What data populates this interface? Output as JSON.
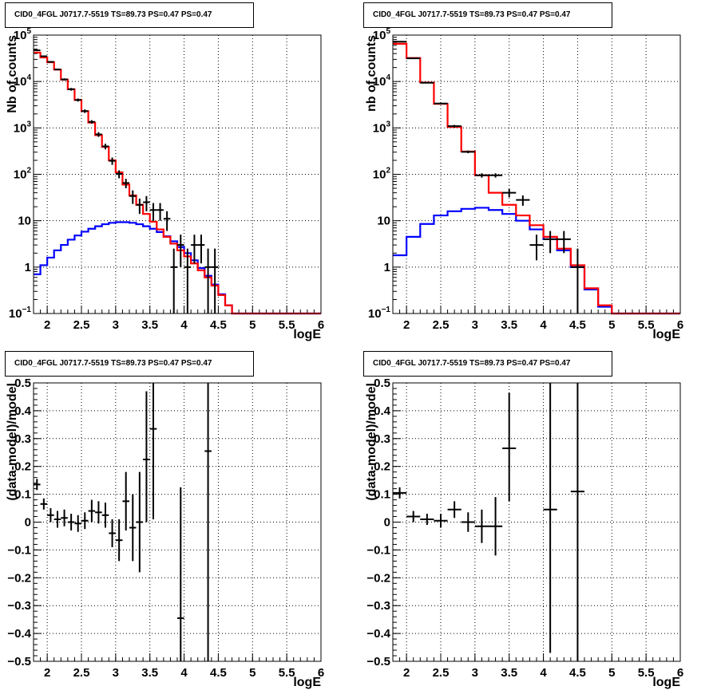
{
  "panel_title": "CID0_4FGL J0717.7-5519 TS=89.73 PS=0.47 PS=0.47",
  "colors": {
    "data": "#000000",
    "total_model": "#ff0000",
    "source_model": "#0000ff",
    "grid": "#000000"
  },
  "chart_data": [
    {
      "type": "line",
      "title": "CID0_4FGL J0717.7-5519 TS=89.73 PS=0.47 PS=0.47",
      "xlabel": "logE",
      "ylabel": "Nb of counts",
      "xlim": [
        1.8,
        6.0
      ],
      "ylim": [
        0.1,
        100000
      ],
      "yscale": "log",
      "grid": true,
      "xticks": [
        "2",
        "2.5",
        "3",
        "3.5",
        "4",
        "4.5",
        "5",
        "5.5",
        "6"
      ],
      "yticks": [
        "10⁻¹",
        "1",
        "10",
        "10²",
        "10³",
        "10⁴",
        "10⁵"
      ],
      "bin_edges": [
        1.8,
        1.9,
        2.0,
        2.1,
        2.2,
        2.3,
        2.4,
        2.5,
        2.6,
        2.7,
        2.8,
        2.9,
        3.0,
        3.1,
        3.2,
        3.3,
        3.4,
        3.5,
        3.6,
        3.7,
        3.8,
        3.9,
        4.0,
        4.1,
        4.2,
        4.3,
        4.4,
        4.5,
        4.6,
        4.7,
        4.8,
        4.9,
        5.0,
        5.1,
        5.2,
        5.3,
        5.4,
        5.5,
        5.6,
        5.7,
        5.8,
        5.9,
        6.0
      ],
      "series": [
        {
          "values": [
            42000,
            33000,
            26000,
            18000,
            11000,
            6800,
            4000,
            2300,
            1300,
            700,
            390,
            200,
            110,
            60,
            35,
            22,
            14,
            9.5,
            6.5,
            4.5,
            3.2,
            2.3,
            1.7,
            1.2,
            0.85,
            0.6,
            0.4,
            0.25,
            0.15,
            0.1,
            0.1,
            0.1,
            0.1,
            0.1,
            0.1,
            0.1,
            0.1,
            0.1,
            0.1,
            0.1,
            0.1,
            0.1
          ]
        },
        {
          "values": [
            0.7,
            1.1,
            1.6,
            2.3,
            3.0,
            3.9,
            4.8,
            5.8,
            6.7,
            7.6,
            8.4,
            9.0,
            9.3,
            9.3,
            9.0,
            8.4,
            7.6,
            6.7,
            5.7,
            4.6,
            3.6,
            2.7,
            2.0,
            1.4,
            0.95,
            0.65,
            0.42,
            0.26,
            0.15,
            0.1,
            0.1,
            0.1,
            0.1,
            0.1,
            0.1,
            0.1,
            0.1,
            0.1,
            0.1,
            0.1,
            0.1,
            0.1
          ]
        },
        {
          "points": [
            {
              "x": 1.85,
              "y": 47000,
              "lo": 45000,
              "hi": 49000
            },
            {
              "x": 1.95,
              "y": 35000,
              "lo": 34000,
              "hi": 36200
            },
            {
              "x": 2.05,
              "y": 26500,
              "lo": 25500,
              "hi": 27500
            },
            {
              "x": 2.15,
              "y": 18200,
              "lo": 17400,
              "hi": 19000
            },
            {
              "x": 2.25,
              "y": 11100,
              "lo": 10500,
              "hi": 11700
            },
            {
              "x": 2.35,
              "y": 6800,
              "lo": 6350,
              "hi": 7250
            },
            {
              "x": 2.45,
              "y": 4000,
              "lo": 3700,
              "hi": 4300
            },
            {
              "x": 2.55,
              "y": 2300,
              "lo": 2100,
              "hi": 2500
            },
            {
              "x": 2.65,
              "y": 1350,
              "lo": 1230,
              "hi": 1470
            },
            {
              "x": 2.75,
              "y": 725,
              "lo": 640,
              "hi": 810
            },
            {
              "x": 2.85,
              "y": 400,
              "lo": 345,
              "hi": 455
            },
            {
              "x": 2.95,
              "y": 195,
              "lo": 160,
              "hi": 230
            },
            {
              "x": 3.05,
              "y": 102,
              "lo": 82,
              "hi": 122
            },
            {
              "x": 3.15,
              "y": 65,
              "lo": 50,
              "hi": 80
            },
            {
              "x": 3.25,
              "y": 34,
              "lo": 23,
              "hi": 45
            },
            {
              "x": 3.35,
              "y": 22,
              "lo": 14,
              "hi": 30
            },
            {
              "x": 3.45,
              "y": 25,
              "lo": 16,
              "hi": 34
            },
            {
              "x": 3.55,
              "y": 17,
              "lo": 10,
              "hi": 24
            },
            {
              "x": 3.65,
              "y": 17,
              "lo": 10,
              "hi": 24
            },
            {
              "x": 3.75,
              "y": 11,
              "lo": 6,
              "hi": 16
            },
            {
              "x": 3.85,
              "y": 1,
              "lo": 0.1,
              "hi": 2.5
            },
            {
              "x": 3.95,
              "y": 3,
              "lo": 1,
              "hi": 5
            },
            {
              "x": 4.05,
              "y": 1,
              "lo": 0.1,
              "hi": 2.5
            },
            {
              "x": 4.15,
              "y": 3,
              "lo": 1.2,
              "hi": 5
            },
            {
              "x": 4.25,
              "y": 3,
              "lo": 1.2,
              "hi": 5
            },
            {
              "x": 4.35,
              "y": 1,
              "lo": 0.1,
              "hi": 2.5
            },
            {
              "x": 4.45,
              "y": 1,
              "lo": 0.1,
              "hi": 2.5
            }
          ]
        }
      ]
    },
    {
      "type": "line",
      "title": "CID0_4FGL J0717.7-5519 TS=89.73 PS=0.47 PS=0.47",
      "xlabel": "logE",
      "ylabel": "nb of counts",
      "xlim": [
        1.8,
        6.0
      ],
      "ylim": [
        0.1,
        100000
      ],
      "yscale": "log",
      "grid": true,
      "xticks": [
        "2",
        "2.5",
        "3",
        "3.5",
        "4",
        "4.5",
        "5",
        "5.5",
        "6"
      ],
      "yticks": [
        "10⁻¹",
        "1",
        "10",
        "10²",
        "10³",
        "10⁴",
        "10⁵"
      ],
      "bin_edges": [
        1.8,
        2.0,
        2.2,
        2.4,
        2.6,
        2.8,
        3.0,
        3.2,
        3.4,
        3.6,
        3.8,
        4.0,
        4.2,
        4.4,
        4.6,
        4.8,
        5.0,
        5.2,
        5.4,
        5.6,
        5.8,
        6.0
      ],
      "series": [
        {
          "values": [
            65000,
            32000,
            9500,
            3300,
            1050,
            310,
            95,
            40,
            22,
            13,
            8,
            4.5,
            2.5,
            1.1,
            0.35,
            0.15,
            0.1,
            0.1,
            0.1,
            0.1,
            0.1
          ]
        },
        {
          "values": [
            1.8,
            4.5,
            8.5,
            13,
            16,
            18,
            19,
            17,
            14,
            10,
            6.5,
            4,
            2.3,
            1.0,
            0.33,
            0.14,
            0.1,
            0.1,
            0.1,
            0.1,
            0.1
          ]
        },
        {
          "points": [
            {
              "x": 1.9,
              "y": 72000,
              "lo": 70500,
              "hi": 73500
            },
            {
              "x": 2.1,
              "y": 31500,
              "lo": 30700,
              "hi": 32300
            },
            {
              "x": 2.3,
              "y": 9400,
              "lo": 9100,
              "hi": 9700
            },
            {
              "x": 2.5,
              "y": 3350,
              "lo": 3200,
              "hi": 3500
            },
            {
              "x": 2.7,
              "y": 1090,
              "lo": 1020,
              "hi": 1160
            },
            {
              "x": 2.9,
              "y": 305,
              "lo": 285,
              "hi": 325
            },
            {
              "x": 3.1,
              "y": 95,
              "lo": 85,
              "hi": 105
            },
            {
              "x": 3.3,
              "y": 95,
              "lo": 85,
              "hi": 105
            },
            {
              "x": 3.5,
              "y": 40,
              "lo": 32,
              "hi": 48
            },
            {
              "x": 3.7,
              "y": 28,
              "lo": 21,
              "hi": 35
            },
            {
              "x": 3.9,
              "y": 3,
              "lo": 1.4,
              "hi": 5
            },
            {
              "x": 4.1,
              "y": 4,
              "lo": 2,
              "hi": 6
            },
            {
              "x": 4.3,
              "y": 4,
              "lo": 2,
              "hi": 6
            },
            {
              "x": 4.5,
              "y": 1,
              "lo": 0.1,
              "hi": 2.5
            }
          ]
        }
      ]
    },
    {
      "type": "scatter",
      "title": "CID0_4FGL J0717.7-5519 TS=89.73 PS=0.47 PS=0.47",
      "xlabel": "logE",
      "ylabel": "(data-model)/model",
      "xlim": [
        1.8,
        6.0
      ],
      "ylim": [
        -0.5,
        0.5
      ],
      "grid": true,
      "xticks": [
        "2",
        "2.5",
        "3",
        "3.5",
        "4",
        "4.5",
        "5",
        "5.5",
        "6"
      ],
      "yticks": [
        "−0.5",
        "−0.4",
        "−0.3",
        "−0.2",
        "−0.1",
        "0",
        "0.1",
        "0.2",
        "0.3",
        "0.4",
        "0.5"
      ],
      "xbin": 0.1,
      "points": [
        {
          "x": 1.85,
          "y": 0.135,
          "lo": 0.115,
          "hi": 0.155
        },
        {
          "x": 1.95,
          "y": 0.065,
          "lo": 0.045,
          "hi": 0.085
        },
        {
          "x": 2.05,
          "y": 0.025,
          "lo": 0.0,
          "hi": 0.05
        },
        {
          "x": 2.15,
          "y": 0.01,
          "lo": -0.02,
          "hi": 0.04
        },
        {
          "x": 2.25,
          "y": 0.015,
          "lo": -0.015,
          "hi": 0.045
        },
        {
          "x": 2.35,
          "y": 0.0,
          "lo": -0.03,
          "hi": 0.03
        },
        {
          "x": 2.45,
          "y": -0.005,
          "lo": -0.035,
          "hi": 0.025
        },
        {
          "x": 2.55,
          "y": 0.005,
          "lo": -0.025,
          "hi": 0.035
        },
        {
          "x": 2.65,
          "y": 0.04,
          "lo": 0.0,
          "hi": 0.08
        },
        {
          "x": 2.75,
          "y": 0.035,
          "lo": -0.005,
          "hi": 0.075
        },
        {
          "x": 2.85,
          "y": 0.025,
          "lo": -0.02,
          "hi": 0.07
        },
        {
          "x": 2.95,
          "y": -0.04,
          "lo": -0.09,
          "hi": 0.01
        },
        {
          "x": 3.05,
          "y": -0.065,
          "lo": -0.14,
          "hi": 0.01
        },
        {
          "x": 3.15,
          "y": 0.075,
          "lo": -0.03,
          "hi": 0.18
        },
        {
          "x": 3.25,
          "y": -0.02,
          "lo": -0.14,
          "hi": 0.1
        },
        {
          "x": 3.35,
          "y": 0.0,
          "lo": -0.18,
          "hi": 0.18
        },
        {
          "x": 3.45,
          "y": 0.225,
          "lo": 0.0,
          "hi": 0.47
        },
        {
          "x": 3.55,
          "y": 0.335,
          "lo": 0.01,
          "hi": 0.55
        },
        {
          "x": 3.95,
          "y": -0.345,
          "lo": -0.55,
          "hi": 0.125
        },
        {
          "x": 4.35,
          "y": 0.255,
          "lo": -0.55,
          "hi": 0.55
        }
      ]
    },
    {
      "type": "scatter",
      "title": "CID0_4FGL J0717.7-5519 TS=89.73 PS=0.47 PS=0.47",
      "xlabel": "logE",
      "ylabel": "(data-model)/model",
      "xlim": [
        1.8,
        6.0
      ],
      "ylim": [
        -0.5,
        0.5
      ],
      "grid": true,
      "xticks": [
        "2",
        "2.5",
        "3",
        "3.5",
        "4",
        "4.5",
        "5",
        "5.5",
        "6"
      ],
      "yticks": [
        "−0.5",
        "−0.4",
        "−0.3",
        "−0.2",
        "−0.1",
        "0",
        "0.1",
        "0.2",
        "0.3",
        "0.4",
        "0.5"
      ],
      "xbin": 0.2,
      "points": [
        {
          "x": 1.9,
          "y": 0.105,
          "lo": 0.085,
          "hi": 0.125
        },
        {
          "x": 2.1,
          "y": 0.02,
          "lo": 0.0,
          "hi": 0.04
        },
        {
          "x": 2.3,
          "y": 0.01,
          "lo": -0.01,
          "hi": 0.03
        },
        {
          "x": 2.5,
          "y": 0.005,
          "lo": -0.02,
          "hi": 0.03
        },
        {
          "x": 2.7,
          "y": 0.045,
          "lo": 0.015,
          "hi": 0.075
        },
        {
          "x": 2.9,
          "y": 0.0,
          "lo": -0.035,
          "hi": 0.035
        },
        {
          "x": 3.1,
          "y": -0.015,
          "lo": -0.075,
          "hi": 0.045
        },
        {
          "x": 3.3,
          "y": -0.015,
          "lo": -0.12,
          "hi": 0.09
        },
        {
          "x": 3.5,
          "y": 0.265,
          "lo": 0.075,
          "hi": 0.465
        },
        {
          "x": 4.1,
          "y": 0.045,
          "lo": -0.47,
          "hi": 0.55
        },
        {
          "x": 4.5,
          "y": 0.11,
          "lo": -0.55,
          "hi": 0.55
        }
      ]
    }
  ]
}
